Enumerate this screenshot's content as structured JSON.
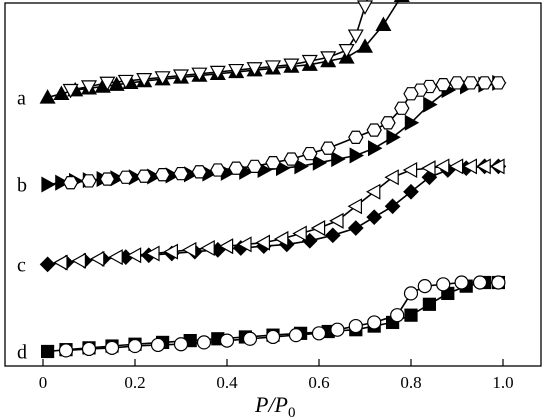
{
  "chart_data": {
    "type": "line",
    "xlabel": "P/P",
    "xlabel_subscript": "0",
    "ylabel": "",
    "xlim": [
      0,
      1.0
    ],
    "ylim": [
      0,
      1
    ],
    "x_ticks": [
      "0",
      "0.2",
      "0.4",
      "0.6",
      "0.8",
      "1.0"
    ],
    "grid": false,
    "y_axis_numbered": false,
    "series": [
      {
        "name": "a",
        "offset": 0.74,
        "adsorption": {
          "marker": "triangle-up",
          "fill": "filled",
          "x": [
            0.01,
            0.04,
            0.07,
            0.1,
            0.13,
            0.16,
            0.19,
            0.22,
            0.26,
            0.3,
            0.34,
            0.38,
            0.42,
            0.46,
            0.5,
            0.54,
            0.58,
            0.62,
            0.66,
            0.7,
            0.74,
            0.78,
            0.82,
            0.86,
            0.9,
            0.93,
            0.96,
            0.99
          ],
          "y": [
            0.0,
            0.01,
            0.02,
            0.025,
            0.03,
            0.035,
            0.04,
            0.045,
            0.05,
            0.055,
            0.06,
            0.065,
            0.07,
            0.075,
            0.08,
            0.085,
            0.09,
            0.1,
            0.11,
            0.14,
            0.2,
            0.28,
            0.36,
            0.44,
            0.46,
            0.465,
            0.47,
            0.47
          ]
        },
        "desorption": {
          "marker": "triangle-down",
          "fill": "open",
          "x": [
            0.99,
            0.96,
            0.93,
            0.9,
            0.87,
            0.84,
            0.8,
            0.76,
            0.72,
            0.7,
            0.68,
            0.66,
            0.62,
            0.58,
            0.54,
            0.5,
            0.46,
            0.42,
            0.38,
            0.34,
            0.3,
            0.26,
            0.22,
            0.18,
            0.14,
            0.1,
            0.06
          ],
          "y": [
            0.48,
            0.48,
            0.47,
            0.47,
            0.46,
            0.45,
            0.43,
            0.4,
            0.33,
            0.25,
            0.17,
            0.13,
            0.11,
            0.1,
            0.09,
            0.085,
            0.08,
            0.075,
            0.07,
            0.065,
            0.06,
            0.055,
            0.05,
            0.045,
            0.04,
            0.03,
            0.02
          ]
        }
      },
      {
        "name": "b",
        "offset": 0.5,
        "adsorption": {
          "marker": "triangle-right",
          "fill": "filled",
          "x": [
            0.01,
            0.04,
            0.07,
            0.1,
            0.13,
            0.16,
            0.2,
            0.24,
            0.28,
            0.32,
            0.36,
            0.4,
            0.44,
            0.48,
            0.52,
            0.56,
            0.6,
            0.64,
            0.68,
            0.72,
            0.76,
            0.8,
            0.84,
            0.88,
            0.92,
            0.96,
            0.99
          ],
          "y": [
            0.0,
            0.005,
            0.01,
            0.012,
            0.015,
            0.017,
            0.02,
            0.022,
            0.025,
            0.028,
            0.03,
            0.032,
            0.035,
            0.04,
            0.045,
            0.05,
            0.06,
            0.07,
            0.08,
            0.1,
            0.13,
            0.17,
            0.22,
            0.26,
            0.27,
            0.275,
            0.28
          ]
        },
        "desorption": {
          "marker": "hexagon",
          "fill": "open",
          "x": [
            0.99,
            0.96,
            0.93,
            0.9,
            0.87,
            0.84,
            0.82,
            0.8,
            0.78,
            0.75,
            0.72,
            0.68,
            0.62,
            0.58,
            0.54,
            0.5,
            0.46,
            0.42,
            0.38,
            0.34,
            0.3,
            0.26,
            0.22,
            0.18,
            0.14,
            0.1,
            0.06
          ],
          "y": [
            0.28,
            0.28,
            0.28,
            0.28,
            0.275,
            0.27,
            0.26,
            0.25,
            0.21,
            0.17,
            0.15,
            0.13,
            0.1,
            0.085,
            0.07,
            0.06,
            0.05,
            0.045,
            0.04,
            0.035,
            0.03,
            0.027,
            0.023,
            0.02,
            0.015,
            0.01,
            0.005
          ]
        }
      },
      {
        "name": "c",
        "offset": 0.28,
        "adsorption": {
          "marker": "diamond",
          "fill": "filled",
          "x": [
            0.01,
            0.05,
            0.09,
            0.13,
            0.18,
            0.23,
            0.28,
            0.33,
            0.38,
            0.43,
            0.48,
            0.53,
            0.58,
            0.63,
            0.68,
            0.72,
            0.76,
            0.8,
            0.84,
            0.88,
            0.92,
            0.96,
            0.99
          ],
          "y": [
            0.0,
            0.005,
            0.01,
            0.015,
            0.02,
            0.025,
            0.03,
            0.035,
            0.04,
            0.045,
            0.05,
            0.055,
            0.065,
            0.08,
            0.1,
            0.13,
            0.16,
            0.2,
            0.24,
            0.26,
            0.265,
            0.27,
            0.27
          ]
        },
        "desorption": {
          "marker": "triangle-left",
          "fill": "open",
          "x": [
            0.99,
            0.96,
            0.93,
            0.9,
            0.87,
            0.84,
            0.8,
            0.76,
            0.72,
            0.68,
            0.64,
            0.6,
            0.56,
            0.52,
            0.48,
            0.44,
            0.4,
            0.36,
            0.32,
            0.28,
            0.24,
            0.2,
            0.16,
            0.12,
            0.08,
            0.04
          ],
          "y": [
            0.27,
            0.27,
            0.27,
            0.27,
            0.27,
            0.265,
            0.26,
            0.24,
            0.2,
            0.16,
            0.12,
            0.1,
            0.085,
            0.07,
            0.06,
            0.055,
            0.05,
            0.045,
            0.04,
            0.035,
            0.03,
            0.025,
            0.02,
            0.015,
            0.01,
            0.005
          ]
        }
      },
      {
        "name": "d",
        "offset": 0.04,
        "adsorption": {
          "marker": "square",
          "fill": "filled",
          "x": [
            0.01,
            0.05,
            0.1,
            0.15,
            0.2,
            0.26,
            0.32,
            0.38,
            0.44,
            0.5,
            0.56,
            0.62,
            0.68,
            0.72,
            0.76,
            0.8,
            0.84,
            0.88,
            0.92,
            0.96,
            0.99
          ],
          "y": [
            0.0,
            0.005,
            0.01,
            0.015,
            0.02,
            0.025,
            0.03,
            0.035,
            0.04,
            0.045,
            0.05,
            0.055,
            0.06,
            0.07,
            0.08,
            0.1,
            0.13,
            0.16,
            0.18,
            0.19,
            0.19
          ]
        },
        "desorption": {
          "marker": "circle",
          "fill": "open",
          "x": [
            0.99,
            0.95,
            0.91,
            0.87,
            0.83,
            0.8,
            0.77,
            0.72,
            0.68,
            0.64,
            0.6,
            0.55,
            0.5,
            0.45,
            0.4,
            0.35,
            0.3,
            0.25,
            0.2,
            0.15,
            0.1,
            0.05
          ],
          "y": [
            0.19,
            0.19,
            0.19,
            0.185,
            0.18,
            0.16,
            0.1,
            0.08,
            0.07,
            0.06,
            0.05,
            0.045,
            0.04,
            0.035,
            0.03,
            0.025,
            0.02,
            0.018,
            0.015,
            0.01,
            0.007,
            0.003
          ]
        }
      }
    ]
  }
}
